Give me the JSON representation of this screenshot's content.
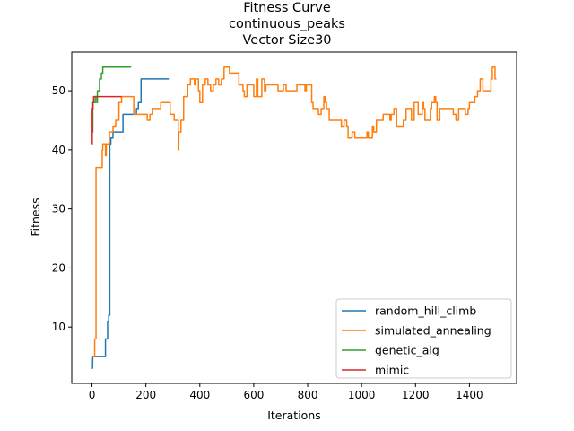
{
  "chart_data": {
    "type": "line",
    "title_lines": [
      "Fitness Curve",
      "continuous_peaks",
      "Vector Size30"
    ],
    "xlabel": "Iterations",
    "ylabel": "Fitness",
    "xlim": [
      -75,
      1575
    ],
    "ylim": [
      0.45,
      56.55
    ],
    "xticks": [
      0,
      200,
      400,
      600,
      800,
      1000,
      1200,
      1400
    ],
    "yticks": [
      10,
      20,
      30,
      40,
      50
    ],
    "grid": false,
    "legend_position": "lower-right",
    "series": [
      {
        "name": "random_hill_climb",
        "color": "#1f77b4",
        "points": [
          [
            0,
            3
          ],
          [
            2,
            3
          ],
          [
            3,
            5
          ],
          [
            50,
            5
          ],
          [
            50,
            8
          ],
          [
            58,
            8
          ],
          [
            58,
            11
          ],
          [
            62,
            11
          ],
          [
            62,
            12
          ],
          [
            66,
            12
          ],
          [
            66,
            41
          ],
          [
            70,
            41
          ],
          [
            70,
            42
          ],
          [
            78,
            42
          ],
          [
            78,
            43
          ],
          [
            115,
            43
          ],
          [
            115,
            46
          ],
          [
            165,
            46
          ],
          [
            165,
            47
          ],
          [
            172,
            47
          ],
          [
            172,
            48
          ],
          [
            182,
            48
          ],
          [
            182,
            52
          ],
          [
            285,
            52
          ]
        ]
      },
      {
        "name": "simulated_annealing",
        "color": "#ff7f0e",
        "points": [
          [
            0,
            5
          ],
          [
            10,
            5
          ],
          [
            10,
            8
          ],
          [
            15,
            8
          ],
          [
            15,
            37
          ],
          [
            38,
            37
          ],
          [
            38,
            40
          ],
          [
            40,
            40
          ],
          [
            40,
            41
          ],
          [
            50,
            41
          ],
          [
            50,
            39
          ],
          [
            53,
            39
          ],
          [
            53,
            41
          ],
          [
            65,
            41
          ],
          [
            65,
            43
          ],
          [
            78,
            43
          ],
          [
            78,
            44
          ],
          [
            88,
            44
          ],
          [
            88,
            45
          ],
          [
            100,
            45
          ],
          [
            100,
            48
          ],
          [
            110,
            48
          ],
          [
            110,
            49
          ],
          [
            155,
            49
          ],
          [
            155,
            46
          ],
          [
            205,
            46
          ],
          [
            205,
            45
          ],
          [
            215,
            45
          ],
          [
            215,
            46
          ],
          [
            225,
            46
          ],
          [
            225,
            47
          ],
          [
            255,
            47
          ],
          [
            255,
            48
          ],
          [
            290,
            48
          ],
          [
            290,
            46
          ],
          [
            305,
            46
          ],
          [
            305,
            45
          ],
          [
            320,
            45
          ],
          [
            320,
            40
          ],
          [
            322,
            40
          ],
          [
            322,
            43
          ],
          [
            330,
            43
          ],
          [
            330,
            45
          ],
          [
            340,
            45
          ],
          [
            340,
            49
          ],
          [
            355,
            49
          ],
          [
            355,
            51
          ],
          [
            365,
            51
          ],
          [
            365,
            52
          ],
          [
            380,
            52
          ],
          [
            380,
            51
          ],
          [
            385,
            51
          ],
          [
            385,
            52
          ],
          [
            395,
            52
          ],
          [
            395,
            50
          ],
          [
            400,
            50
          ],
          [
            400,
            48
          ],
          [
            410,
            48
          ],
          [
            410,
            51
          ],
          [
            420,
            51
          ],
          [
            420,
            52
          ],
          [
            430,
            52
          ],
          [
            430,
            51
          ],
          [
            440,
            51
          ],
          [
            440,
            50
          ],
          [
            450,
            50
          ],
          [
            450,
            51
          ],
          [
            460,
            51
          ],
          [
            460,
            52
          ],
          [
            470,
            52
          ],
          [
            470,
            51
          ],
          [
            480,
            51
          ],
          [
            480,
            52
          ],
          [
            490,
            52
          ],
          [
            490,
            54
          ],
          [
            510,
            54
          ],
          [
            510,
            53
          ],
          [
            545,
            53
          ],
          [
            545,
            51
          ],
          [
            560,
            51
          ],
          [
            560,
            50
          ],
          [
            565,
            50
          ],
          [
            565,
            49
          ],
          [
            575,
            49
          ],
          [
            575,
            51
          ],
          [
            600,
            51
          ],
          [
            600,
            49
          ],
          [
            610,
            49
          ],
          [
            610,
            52
          ],
          [
            615,
            52
          ],
          [
            615,
            49
          ],
          [
            630,
            49
          ],
          [
            630,
            52
          ],
          [
            640,
            52
          ],
          [
            640,
            50
          ],
          [
            645,
            50
          ],
          [
            645,
            51
          ],
          [
            690,
            51
          ],
          [
            690,
            50
          ],
          [
            710,
            50
          ],
          [
            710,
            51
          ],
          [
            720,
            51
          ],
          [
            720,
            50
          ],
          [
            760,
            50
          ],
          [
            760,
            51
          ],
          [
            790,
            51
          ],
          [
            790,
            50
          ],
          [
            795,
            50
          ],
          [
            795,
            51
          ],
          [
            815,
            51
          ],
          [
            815,
            48
          ],
          [
            820,
            48
          ],
          [
            820,
            47
          ],
          [
            840,
            47
          ],
          [
            840,
            46
          ],
          [
            850,
            46
          ],
          [
            850,
            47
          ],
          [
            860,
            47
          ],
          [
            860,
            49
          ],
          [
            865,
            49
          ],
          [
            865,
            48
          ],
          [
            870,
            48
          ],
          [
            870,
            47
          ],
          [
            880,
            47
          ],
          [
            880,
            45
          ],
          [
            925,
            45
          ],
          [
            925,
            44
          ],
          [
            935,
            44
          ],
          [
            935,
            45
          ],
          [
            945,
            45
          ],
          [
            945,
            44
          ],
          [
            950,
            44
          ],
          [
            950,
            42
          ],
          [
            965,
            42
          ],
          [
            965,
            43
          ],
          [
            975,
            43
          ],
          [
            975,
            42
          ],
          [
            1020,
            42
          ],
          [
            1020,
            43
          ],
          [
            1025,
            43
          ],
          [
            1025,
            42
          ],
          [
            1040,
            42
          ],
          [
            1040,
            44
          ],
          [
            1045,
            44
          ],
          [
            1045,
            43
          ],
          [
            1055,
            43
          ],
          [
            1055,
            45
          ],
          [
            1080,
            45
          ],
          [
            1080,
            46
          ],
          [
            1105,
            46
          ],
          [
            1105,
            45
          ],
          [
            1110,
            45
          ],
          [
            1110,
            46
          ],
          [
            1120,
            46
          ],
          [
            1120,
            47
          ],
          [
            1130,
            47
          ],
          [
            1130,
            44
          ],
          [
            1155,
            44
          ],
          [
            1155,
            45
          ],
          [
            1165,
            45
          ],
          [
            1165,
            47
          ],
          [
            1185,
            47
          ],
          [
            1185,
            45
          ],
          [
            1195,
            45
          ],
          [
            1195,
            48
          ],
          [
            1210,
            48
          ],
          [
            1210,
            46
          ],
          [
            1225,
            46
          ],
          [
            1225,
            48
          ],
          [
            1230,
            48
          ],
          [
            1230,
            47
          ],
          [
            1235,
            47
          ],
          [
            1235,
            45
          ],
          [
            1255,
            45
          ],
          [
            1255,
            47
          ],
          [
            1260,
            47
          ],
          [
            1260,
            48
          ],
          [
            1270,
            48
          ],
          [
            1270,
            49
          ],
          [
            1275,
            49
          ],
          [
            1275,
            48
          ],
          [
            1280,
            48
          ],
          [
            1280,
            45
          ],
          [
            1290,
            45
          ],
          [
            1290,
            47
          ],
          [
            1340,
            47
          ],
          [
            1340,
            46
          ],
          [
            1350,
            46
          ],
          [
            1350,
            45
          ],
          [
            1360,
            45
          ],
          [
            1360,
            47
          ],
          [
            1385,
            47
          ],
          [
            1385,
            46
          ],
          [
            1395,
            46
          ],
          [
            1395,
            47
          ],
          [
            1400,
            47
          ],
          [
            1400,
            48
          ],
          [
            1420,
            48
          ],
          [
            1420,
            49
          ],
          [
            1430,
            49
          ],
          [
            1430,
            50
          ],
          [
            1440,
            50
          ],
          [
            1440,
            52
          ],
          [
            1450,
            52
          ],
          [
            1450,
            50
          ],
          [
            1480,
            50
          ],
          [
            1480,
            52
          ],
          [
            1485,
            52
          ],
          [
            1485,
            54
          ],
          [
            1495,
            54
          ],
          [
            1495,
            52
          ],
          [
            1500,
            52
          ]
        ]
      },
      {
        "name": "genetic_alg",
        "color": "#2ca02c",
        "points": [
          [
            0,
            43
          ],
          [
            3,
            43
          ],
          [
            3,
            48
          ],
          [
            12,
            48
          ],
          [
            12,
            49
          ],
          [
            18,
            49
          ],
          [
            18,
            48
          ],
          [
            20,
            48
          ],
          [
            20,
            50
          ],
          [
            28,
            50
          ],
          [
            28,
            52
          ],
          [
            35,
            52
          ],
          [
            35,
            53
          ],
          [
            40,
            53
          ],
          [
            40,
            54
          ],
          [
            145,
            54
          ]
        ]
      },
      {
        "name": "mimic",
        "color": "#d62728",
        "points": [
          [
            0,
            41
          ],
          [
            1,
            41
          ],
          [
            1,
            47
          ],
          [
            4,
            47
          ],
          [
            4,
            48
          ],
          [
            6,
            48
          ],
          [
            6,
            49
          ],
          [
            110,
            49
          ]
        ]
      }
    ]
  }
}
